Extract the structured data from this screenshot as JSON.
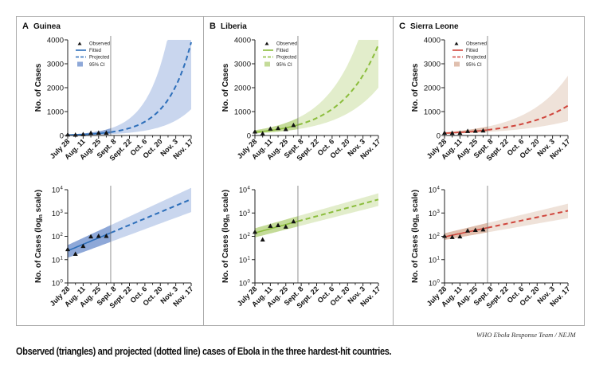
{
  "caption": "Observed (triangles) and projected (dotted line) cases of Ebola in the three hardest-hit countries.",
  "credit": "WHO Ebola Response Team / NEJM",
  "chart_data": {
    "type": "line",
    "x_unit": "days since July 28",
    "x_ticks": [
      0,
      14,
      28,
      42,
      56,
      70,
      84,
      98,
      112
    ],
    "x_tick_labels": [
      "July 28",
      "Aug. 11",
      "Aug. 25",
      "Sept. 8",
      "Sept. 22",
      "Oct. 6",
      "Oct. 20",
      "Nov. 3",
      "Nov. 17"
    ],
    "xlim": [
      0,
      112
    ],
    "linear_plot": {
      "ylabel": "No. of Cases",
      "ylim": [
        0,
        4000
      ],
      "y_ticks": [
        0,
        1000,
        2000,
        3000,
        4000
      ],
      "y_tick_labels": [
        "0",
        "1000",
        "2000",
        "3000",
        "4000"
      ]
    },
    "log_plot": {
      "ylabel_main": "No. of Cases (log",
      "ylabel_sub": "n",
      "ylabel_end": " scale)",
      "ylim": [
        1,
        10000
      ],
      "y_ticks": [
        1,
        10,
        100,
        1000,
        10000
      ],
      "y_tick_bases": [
        "10",
        "10",
        "10",
        "10",
        "10"
      ],
      "y_tick_exps": [
        "0",
        "1",
        "2",
        "3",
        "4"
      ]
    },
    "legend": {
      "observed": "Observed",
      "fitted": "Fitted",
      "projected": "Projected",
      "ci": "95% CI",
      "placement": "top-left"
    },
    "panels": [
      {
        "letter": "A",
        "country": "Guinea",
        "color": "#2d6fba",
        "band": "#c9d6ee",
        "band_fit": "#8ea8d8",
        "observed_days": [
          0,
          7,
          14,
          21,
          28,
          35
        ],
        "observed": [
          27,
          17,
          37,
          95,
          100,
          100
        ],
        "cutoff_day": 39,
        "fit_start": 24,
        "fit_end": 3900,
        "ci_start": [
          12,
          42
        ],
        "ci_end": [
          1100,
          12000
        ]
      },
      {
        "letter": "B",
        "country": "Liberia",
        "color": "#8bbd3c",
        "band": "#e2edcb",
        "band_fit": "#c4db98",
        "observed_days": [
          0,
          7,
          14,
          21,
          28,
          35
        ],
        "observed": [
          150,
          70,
          270,
          290,
          250,
          420
        ],
        "cutoff_day": 39,
        "fit_start": 140,
        "fit_end": 3800,
        "ci_start": [
          90,
          220
        ],
        "ci_end": [
          2000,
          7000
        ]
      },
      {
        "letter": "C",
        "country": "Sierra Leone",
        "color": "#d0453c",
        "band": "#efe2d9",
        "band_fit": "#e0bfae",
        "observed_days": [
          0,
          7,
          14,
          21,
          28,
          35
        ],
        "observed": [
          100,
          90,
          95,
          170,
          180,
          190
        ],
        "cutoff_day": 39,
        "fit_start": 95,
        "fit_end": 1250,
        "ci_start": [
          70,
          135
        ],
        "ci_end": [
          600,
          2500
        ]
      }
    ]
  }
}
